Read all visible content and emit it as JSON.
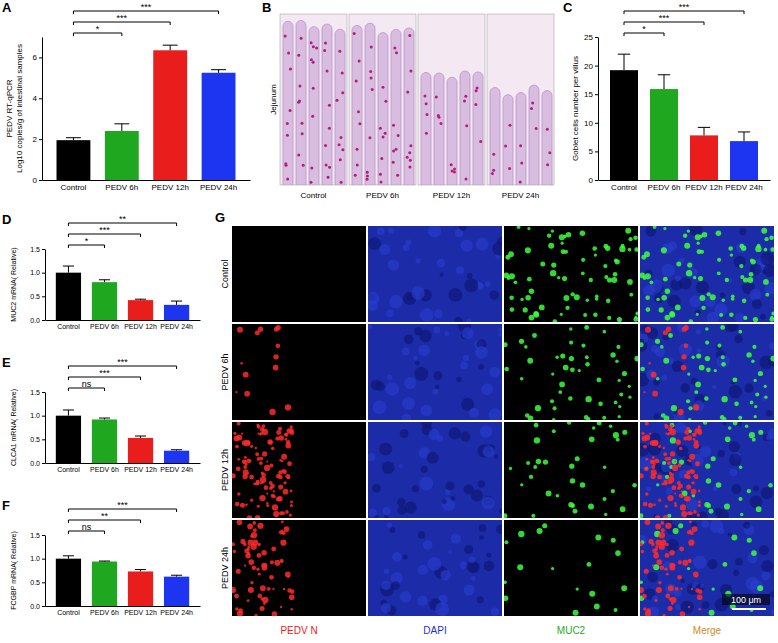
{
  "chart_data": [
    {
      "type": "bar",
      "panel": "A",
      "y_label": [
        "PEDV RT-qPCR",
        "Log10 copies/g of intestinal samples"
      ],
      "categories": [
        "Control",
        "PEDV 6h",
        "PEDV 12h",
        "PEDV 24h"
      ],
      "values": [
        1.95,
        2.4,
        6.35,
        5.25
      ],
      "errors": [
        0.12,
        0.35,
        0.25,
        0.15
      ],
      "colors": [
        "#000000",
        "#1fa81f",
        "#ea1d1d",
        "#1d35f0"
      ],
      "ylim": [
        0,
        7
      ],
      "yticks": [
        0,
        2,
        4,
        6
      ],
      "significance": [
        {
          "pair": [
            0,
            1
          ],
          "label": "*"
        },
        {
          "pair": [
            0,
            2
          ],
          "label": "***"
        },
        {
          "pair": [
            0,
            3
          ],
          "label": "***"
        }
      ]
    },
    {
      "type": "bar",
      "panel": "C",
      "y_label": [
        "Goblet cells number per villus"
      ],
      "categories": [
        "Control",
        "PEDV 6h",
        "PEDV 12h",
        "PEDV 24h"
      ],
      "values": [
        19.2,
        15.9,
        7.8,
        6.8
      ],
      "errors": [
        2.8,
        2.5,
        1.4,
        1.6
      ],
      "colors": [
        "#000000",
        "#1fa81f",
        "#ea1d1d",
        "#1d35f0"
      ],
      "ylim": [
        0,
        25
      ],
      "yticks": [
        0,
        5,
        10,
        15,
        20,
        25
      ],
      "significance": [
        {
          "pair": [
            0,
            1
          ],
          "label": "*"
        },
        {
          "pair": [
            0,
            2
          ],
          "label": "***"
        },
        {
          "pair": [
            0,
            3
          ],
          "label": "***"
        }
      ]
    },
    {
      "type": "bar",
      "panel": "D",
      "y_label": [
        "MUC2 mRNA( Relative)"
      ],
      "categories": [
        "Control",
        "PEDV 6h",
        "PEDV 12h",
        "PEDV 24h"
      ],
      "values": [
        1.0,
        0.8,
        0.42,
        0.32
      ],
      "errors": [
        0.14,
        0.05,
        0.02,
        0.08
      ],
      "colors": [
        "#000000",
        "#1fa81f",
        "#ea1d1d",
        "#1d35f0"
      ],
      "ylim": [
        0,
        1.5
      ],
      "yticks": [
        {
          "value": 0,
          "label": "0.0"
        },
        0.5,
        {
          "value": 1,
          "label": "1.0"
        },
        1.5
      ],
      "significance": [
        {
          "pair": [
            0,
            1
          ],
          "label": "*"
        },
        {
          "pair": [
            0,
            2
          ],
          "label": "***"
        },
        {
          "pair": [
            0,
            3
          ],
          "label": "**"
        }
      ]
    },
    {
      "type": "bar",
      "panel": "E",
      "y_label": [
        "CLCA1 mRNA( Relative)"
      ],
      "categories": [
        "Control",
        "PEDV 6h",
        "PEDV 12h",
        "PEDV 24h"
      ],
      "values": [
        1.0,
        0.92,
        0.53,
        0.26
      ],
      "errors": [
        0.12,
        0.03,
        0.04,
        0.02
      ],
      "colors": [
        "#000000",
        "#1fa81f",
        "#ea1d1d",
        "#1d35f0"
      ],
      "ylim": [
        0,
        1.5
      ],
      "yticks": [
        {
          "value": 0,
          "label": "0.0"
        },
        0.5,
        {
          "value": 1,
          "label": "1.0"
        },
        1.5
      ],
      "significance": [
        {
          "pair": [
            0,
            1
          ],
          "label": "ns"
        },
        {
          "pair": [
            0,
            2
          ],
          "label": "***"
        },
        {
          "pair": [
            0,
            3
          ],
          "label": "***"
        }
      ]
    },
    {
      "type": "bar",
      "panel": "F",
      "y_label": [
        "FCGBP mRNA( Relative)"
      ],
      "categories": [
        "Control",
        "PEDV 6h",
        "PEDV 12h",
        "PEDV 24h"
      ],
      "values": [
        1.0,
        0.94,
        0.73,
        0.62
      ],
      "errors": [
        0.06,
        0.01,
        0.04,
        0.03
      ],
      "colors": [
        "#000000",
        "#1fa81f",
        "#ea1d1d",
        "#1d35f0"
      ],
      "ylim": [
        0,
        1.5
      ],
      "yticks": [
        {
          "value": 0,
          "label": "0.0"
        },
        0.5,
        {
          "value": 1,
          "label": "1.0"
        },
        1.5
      ],
      "significance": [
        {
          "pair": [
            0,
            1
          ],
          "label": "ns"
        },
        {
          "pair": [
            0,
            2
          ],
          "label": "**"
        },
        {
          "pair": [
            0,
            3
          ],
          "label": "***"
        }
      ]
    }
  ],
  "image_panels": [
    {
      "panel": "B",
      "row_labels": [
        "Jejunum"
      ],
      "column_labels": [
        "Control",
        "PEDV 6h",
        "PEDV 12h",
        "PEDV 24h"
      ]
    },
    {
      "panel": "G",
      "row_labels": [
        "Control",
        "PEDV 6h",
        "PEDV 12h",
        "PEDV 24h"
      ],
      "column_labels": [
        "PEDV N",
        "DAPI",
        "MUC2",
        "Merge"
      ],
      "scale_bar": "100 μm"
    }
  ]
}
